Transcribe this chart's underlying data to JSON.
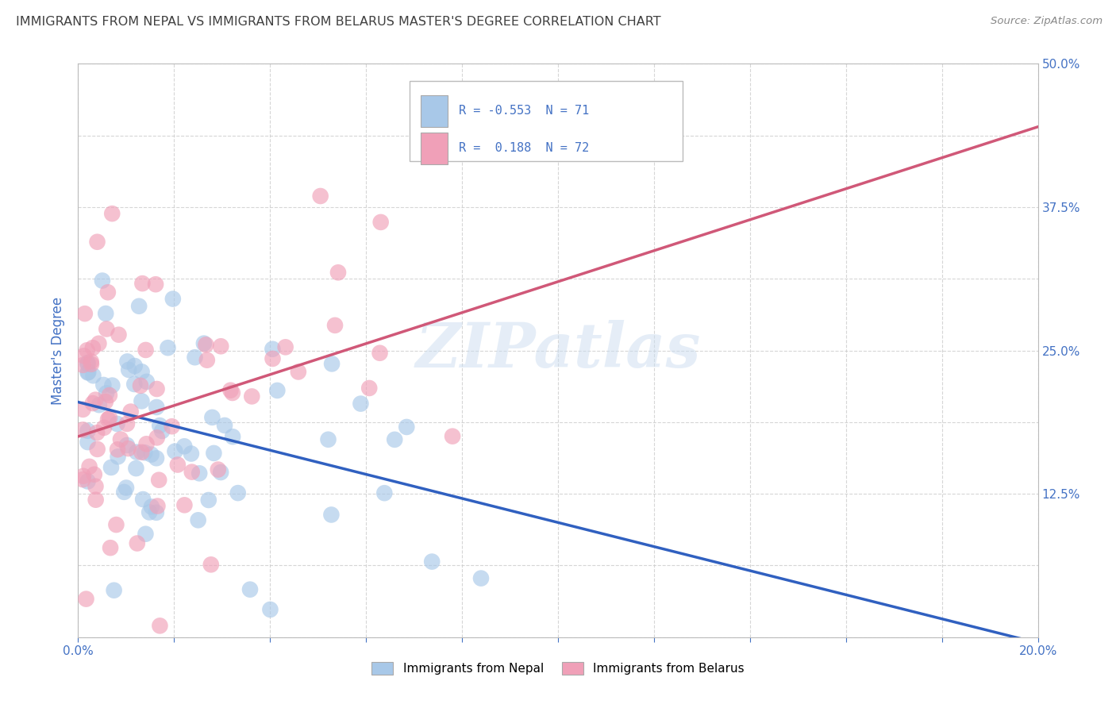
{
  "title": "IMMIGRANTS FROM NEPAL VS IMMIGRANTS FROM BELARUS MASTER'S DEGREE CORRELATION CHART",
  "source": "Source: ZipAtlas.com",
  "ylabel": "Master's Degree",
  "right_yticklabels": [
    "",
    "12.5%",
    "25.0%",
    "37.5%",
    "50.0%"
  ],
  "right_yticks": [
    0.0,
    0.125,
    0.25,
    0.375,
    0.5
  ],
  "xlim": [
    0.0,
    0.2
  ],
  "ylim": [
    0.0,
    0.5
  ],
  "nepal_R": -0.553,
  "nepal_N": 71,
  "belarus_R": 0.188,
  "belarus_N": 72,
  "nepal_color": "#A8C8E8",
  "belarus_color": "#F0A0B8",
  "nepal_line_color": "#3060C0",
  "belarus_line_color": "#D05878",
  "legend_label_nepal": "Immigrants from Nepal",
  "legend_label_belarus": "Immigrants from Belarus",
  "watermark": "ZIPatlas",
  "background_color": "#FFFFFF",
  "plot_bg_color": "#FFFFFF",
  "grid_color": "#CCCCCC",
  "title_color": "#404040",
  "axis_label_color": "#4472C4",
  "nepal_line_intercept": 0.205,
  "nepal_line_slope": -1.05,
  "belarus_line_intercept": 0.175,
  "belarus_line_slope": 1.35
}
